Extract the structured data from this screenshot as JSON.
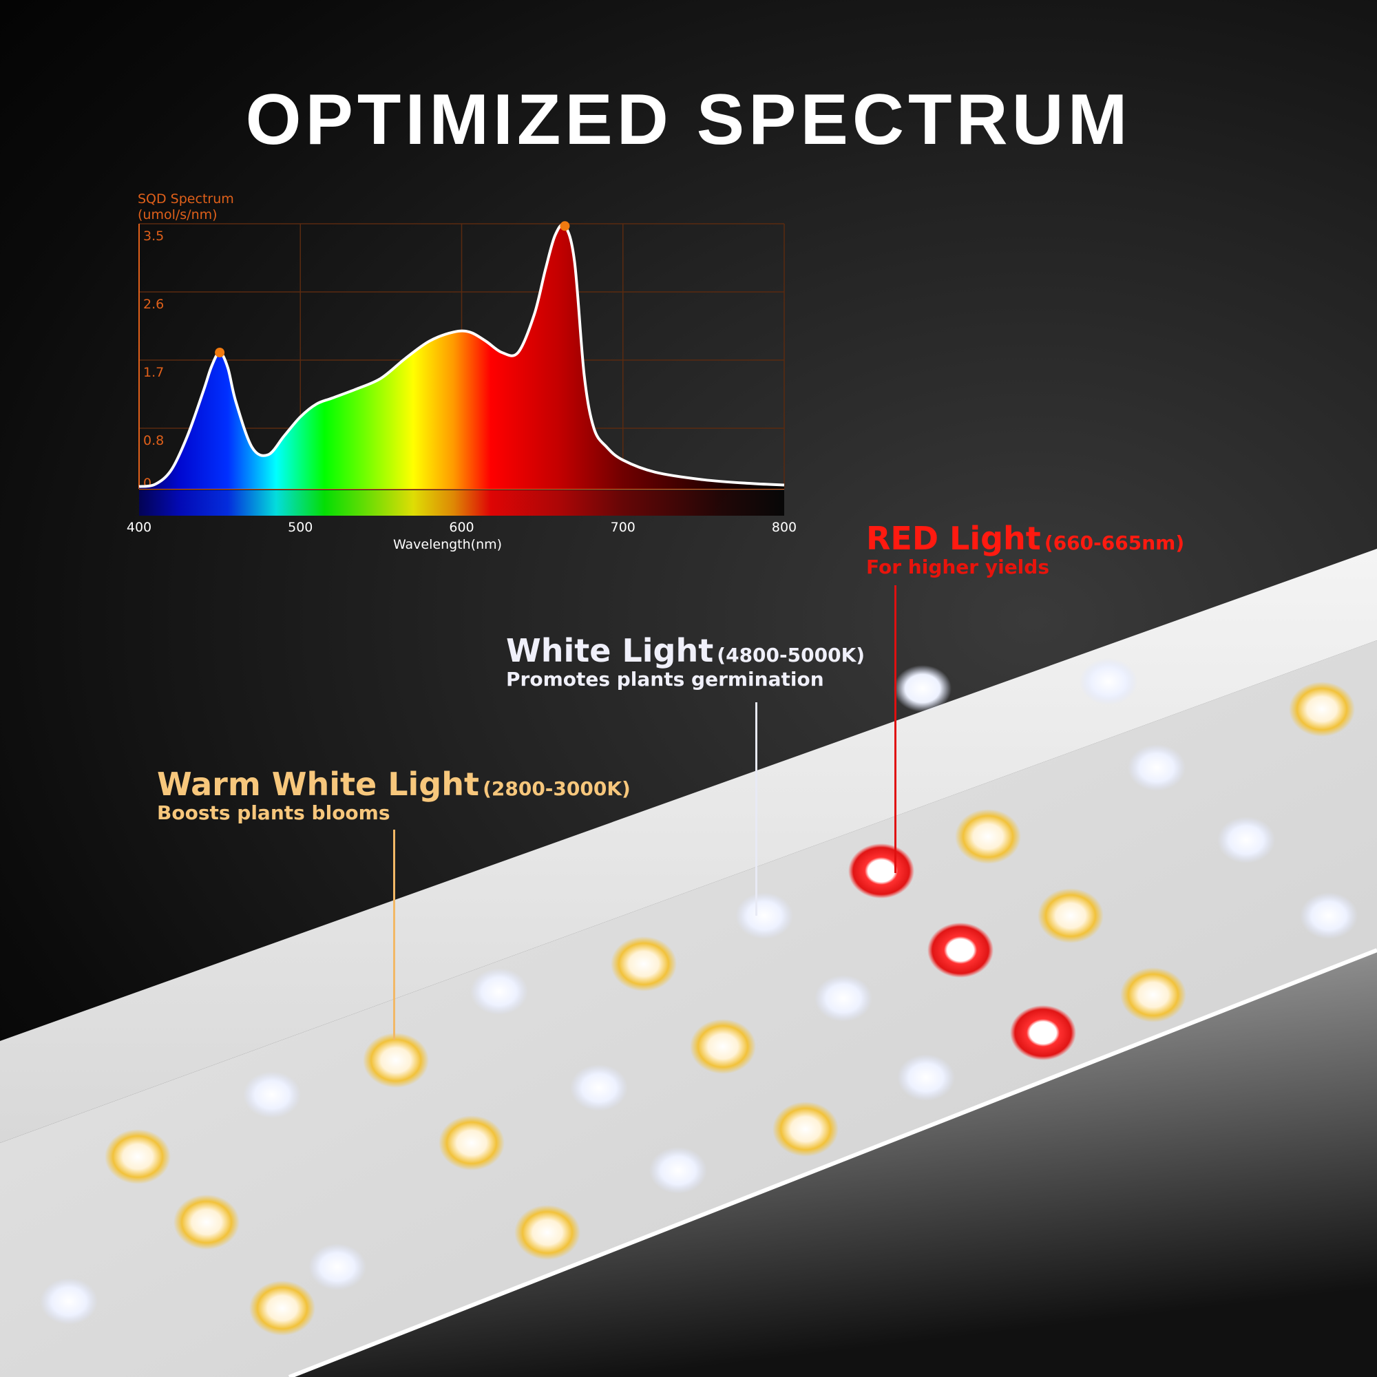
{
  "title": "OPTIMIZED SPECTRUM",
  "chart_data": {
    "type": "area",
    "title": "",
    "ylabel": "SQD Spectrum\n(umol/s/nm)",
    "ylabel_lines": [
      "SQD Spectrum",
      "(umol/s/nm)"
    ],
    "xlabel": "Wavelength(nm)",
    "xlim": [
      400,
      800
    ],
    "ylim": [
      0,
      3.5
    ],
    "x_ticks": [
      400,
      500,
      600,
      700,
      800
    ],
    "y_ticks": [
      0,
      0.8,
      1.7,
      2.6,
      3.5
    ],
    "grid": true,
    "series": [
      {
        "x": [
          400,
          410,
          420,
          430,
          440,
          445,
          450,
          455,
          460,
          470,
          480,
          490,
          500,
          510,
          520,
          535,
          550,
          565,
          580,
          595,
          605,
          615,
          625,
          635,
          645,
          652,
          658,
          664,
          670,
          676,
          682,
          690,
          700,
          720,
          750,
          780,
          800
        ],
        "y": [
          0.03,
          0.06,
          0.25,
          0.7,
          1.3,
          1.62,
          1.8,
          1.6,
          1.15,
          0.55,
          0.45,
          0.7,
          0.95,
          1.12,
          1.2,
          1.32,
          1.46,
          1.72,
          1.95,
          2.07,
          2.07,
          1.95,
          1.8,
          1.8,
          2.3,
          2.9,
          3.35,
          3.47,
          3.0,
          1.5,
          0.8,
          0.55,
          0.38,
          0.22,
          0.12,
          0.07,
          0.05
        ]
      }
    ],
    "peaks": [
      {
        "x": 450,
        "y": 1.8
      },
      {
        "x": 664,
        "y": 3.47
      }
    ],
    "colors": {
      "axis": "#e0601a",
      "grid": "#5a2a10",
      "peak_marker": "#f07a10",
      "curve": "#ffffff"
    }
  },
  "callouts": {
    "red": {
      "heading": "RED Light",
      "range": "(660-665nm)",
      "subtitle": "For higher yields",
      "color": "#ff1a10"
    },
    "white": {
      "heading": "White Light",
      "range": "(4800-5000K)",
      "subtitle": "Promotes plants germination",
      "color": "#f0f0fa"
    },
    "warm": {
      "heading": "Warm White Light",
      "range": "(2800-3000K)",
      "subtitle": "Boosts plants blooms",
      "color": "#f7c77c"
    }
  }
}
